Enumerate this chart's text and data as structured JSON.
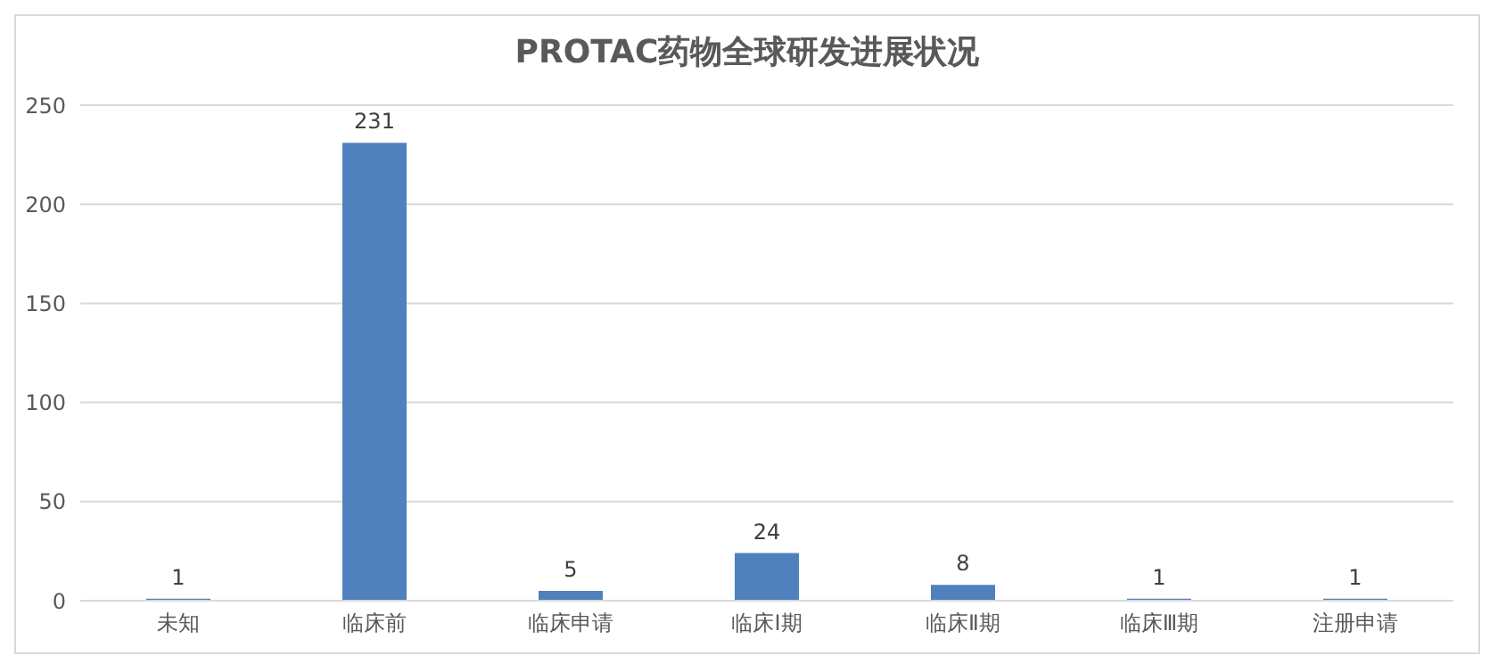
{
  "chart_data": {
    "type": "bar",
    "title": "PROTAC药物全球研发进展状况",
    "categories": [
      "未知",
      "临床前",
      "临床申请",
      "临床Ⅰ期",
      "临床Ⅱ期",
      "临床Ⅲ期",
      "注册申请"
    ],
    "values": [
      1,
      231,
      5,
      24,
      8,
      1,
      1
    ],
    "color": "#4f81bd",
    "ylim": [
      0,
      250
    ],
    "yticks": [
      0,
      50,
      100,
      150,
      200,
      250
    ],
    "grid": "y",
    "data_labels": true
  }
}
